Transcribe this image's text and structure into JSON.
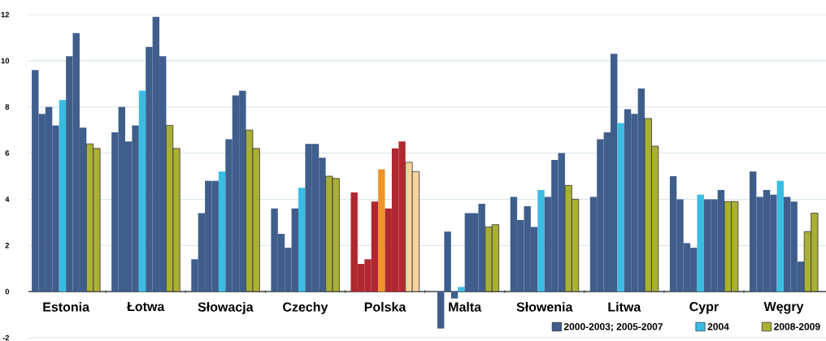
{
  "chart_data": {
    "type": "bar",
    "categories": [
      "Estonia",
      "Łotwa",
      "Słowacja",
      "Czechy",
      "Polska",
      "Malta",
      "Słowenia",
      "Litwa",
      "Cypr",
      "Węgry"
    ],
    "series": [
      {
        "name": "2000-2003; 2005-2007",
        "color": "#3f5e8c",
        "colors": [
          "#3f5e8c",
          "#3f5e8c",
          "#3f5e8c",
          "#3f5e8c",
          "#b0282f",
          "#3f5e8c",
          "#3f5e8c",
          "#3f5e8c",
          "#3f5e8c",
          "#3f5e8c"
        ],
        "values": [
          9.6,
          6.9,
          1.4,
          3.6,
          4.3,
          null,
          4.1,
          4.1,
          5.0,
          5.2
        ]
      },
      {
        "colors": [
          "#3f5e8c",
          "#3f5e8c",
          "#3f5e8c",
          "#3f5e8c",
          "#b0282f",
          "#3f5e8c",
          "#3f5e8c",
          "#3f5e8c",
          "#3f5e8c",
          "#3f5e8c"
        ],
        "values": [
          7.7,
          8.0,
          3.4,
          2.5,
          1.2,
          -1.6,
          3.1,
          6.6,
          4.0,
          4.1
        ]
      },
      {
        "colors": [
          "#3f5e8c",
          "#3f5e8c",
          "#3f5e8c",
          "#3f5e8c",
          "#b0282f",
          "#3f5e8c",
          "#3f5e8c",
          "#3f5e8c",
          "#3f5e8c",
          "#3f5e8c"
        ],
        "values": [
          8.0,
          6.5,
          4.8,
          1.9,
          1.4,
          2.6,
          3.7,
          6.9,
          2.1,
          4.4
        ]
      },
      {
        "colors": [
          "#3f5e8c",
          "#3f5e8c",
          "#3f5e8c",
          "#3f5e8c",
          "#b0282f",
          "#3f5e8c",
          "#3f5e8c",
          "#3f5e8c",
          "#3f5e8c",
          "#3f5e8c"
        ],
        "values": [
          7.2,
          7.2,
          4.8,
          3.6,
          3.9,
          -0.3,
          2.8,
          10.3,
          1.9,
          4.2
        ]
      },
      {
        "name": "2004",
        "color": "#3bbce3",
        "colors": [
          "#3bbce3",
          "#3bbce3",
          "#3bbce3",
          "#3bbce3",
          "#ef9429",
          "#3bbce3",
          "#3bbce3",
          "#3bbce3",
          "#3bbce3",
          "#3bbce3"
        ],
        "values": [
          8.3,
          8.7,
          5.2,
          4.5,
          5.3,
          0.2,
          4.4,
          7.3,
          4.2,
          4.8
        ]
      },
      {
        "colors": [
          "#3f5e8c",
          "#3f5e8c",
          "#3f5e8c",
          "#3f5e8c",
          "#b0282f",
          "#3f5e8c",
          "#3f5e8c",
          "#3f5e8c",
          "#3f5e8c",
          "#3f5e8c"
        ],
        "values": [
          10.2,
          10.6,
          6.6,
          6.4,
          3.6,
          3.4,
          4.1,
          7.9,
          4.0,
          4.1
        ]
      },
      {
        "colors": [
          "#3f5e8c",
          "#3f5e8c",
          "#3f5e8c",
          "#3f5e8c",
          "#b0282f",
          "#3f5e8c",
          "#3f5e8c",
          "#3f5e8c",
          "#3f5e8c",
          "#3f5e8c"
        ],
        "values": [
          11.2,
          11.9,
          8.5,
          6.4,
          6.2,
          3.4,
          5.7,
          7.7,
          4.0,
          3.9
        ]
      },
      {
        "colors": [
          "#3f5e8c",
          "#3f5e8c",
          "#3f5e8c",
          "#3f5e8c",
          "#b0282f",
          "#3f5e8c",
          "#3f5e8c",
          "#3f5e8c",
          "#3f5e8c",
          "#3f5e8c"
        ],
        "values": [
          7.1,
          10.2,
          8.7,
          5.8,
          6.5,
          3.8,
          6.0,
          8.8,
          4.4,
          1.3
        ]
      },
      {
        "name": "2008-2009",
        "color": "#aab035",
        "colors": [
          "#aab035",
          "#aab035",
          "#aab035",
          "#aab035",
          "#f6d49c",
          "#aab035",
          "#aab035",
          "#aab035",
          "#aab035",
          "#aab035"
        ],
        "values": [
          6.4,
          7.2,
          7.0,
          5.0,
          5.6,
          2.8,
          4.6,
          7.5,
          3.9,
          2.6
        ]
      },
      {
        "colors": [
          "#aab035",
          "#aab035",
          "#aab035",
          "#aab035",
          "#f6d49c",
          "#aab035",
          "#aab035",
          "#aab035",
          "#aab035",
          "#aab035"
        ],
        "values": [
          6.2,
          6.2,
          6.2,
          4.9,
          5.2,
          2.9,
          4.0,
          6.3,
          3.9,
          3.4
        ]
      }
    ],
    "ylim": [
      -2,
      12
    ],
    "yticks": [
      -2,
      0,
      2,
      4,
      6,
      8,
      10,
      12
    ],
    "grid": "y",
    "legend": "bottom right"
  }
}
